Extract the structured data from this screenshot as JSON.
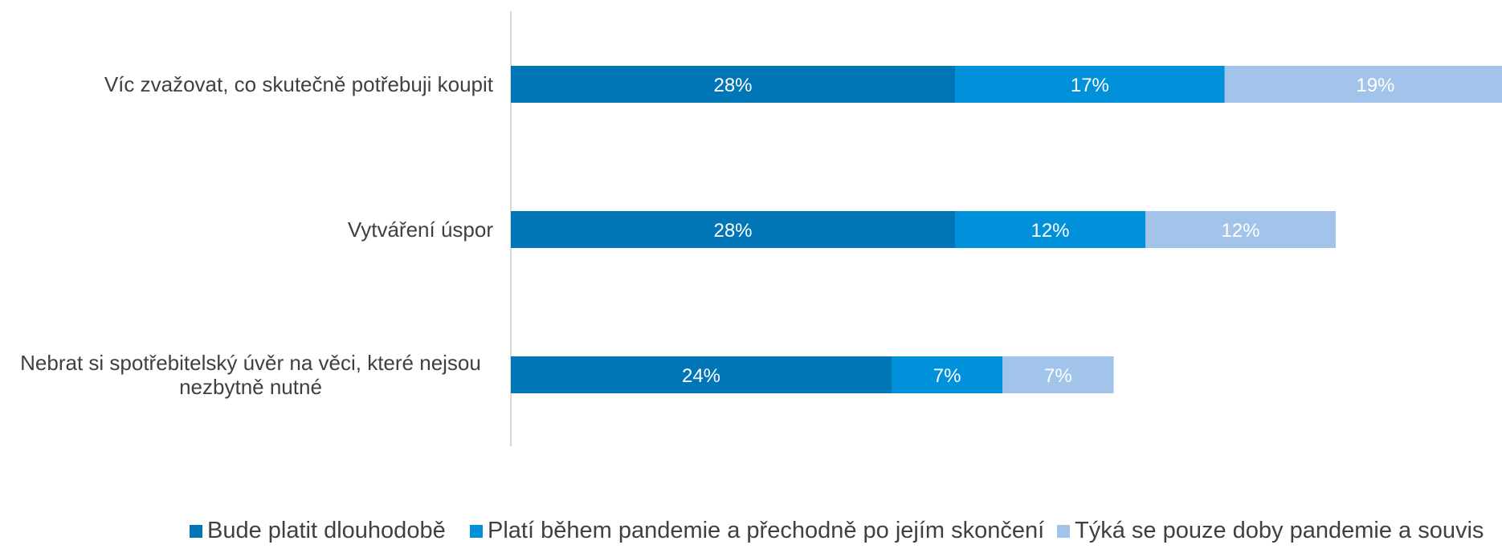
{
  "chart_data": {
    "type": "bar",
    "orientation": "horizontal",
    "stacked": true,
    "categories": [
      "Víc zvažovat, co skutečně potřebuji koupit",
      "Vytváření úspor",
      "Nebrat si spotřebitelský úvěr na věci, které nejsou nezbytně nutné"
    ],
    "category_lines": [
      [
        "Víc zvažovat, co skutečně potřebuji koupit"
      ],
      [
        "Vytváření úspor"
      ],
      [
        "Nebrat si spotřebitelský úvěr na věci, které nejsou",
        "nezbytně nutné"
      ]
    ],
    "series": [
      {
        "name": "Bude platit dlouhodobě",
        "color": "#0076b6",
        "values": [
          28,
          28,
          24
        ],
        "labels": [
          "28%",
          "28%",
          "24%"
        ]
      },
      {
        "name": "Platí během pandemie a přechodně po jejím skončení",
        "color": "#0091da",
        "values": [
          17,
          12,
          7
        ],
        "labels": [
          "17%",
          "12%",
          "7%"
        ]
      },
      {
        "name": "Týká se pouze doby pandemie a souvis",
        "color": "#a2c3ea",
        "values": [
          19,
          12,
          7
        ],
        "labels": [
          "19%",
          "12%",
          "7%"
        ]
      }
    ],
    "legend_position": "bottom",
    "grid": false
  }
}
